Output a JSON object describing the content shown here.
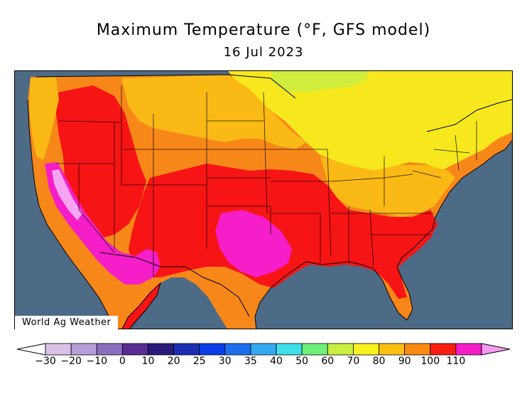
{
  "header": {
    "title": "Maximum Temperature (°F, GFS model)",
    "date": "16 Jul 2023"
  },
  "map": {
    "region": "United States",
    "watermark": "World Ag Weather",
    "ocean_color": "#4d6b87",
    "border_color": "#000000"
  },
  "legend": {
    "ticks": [
      "−30",
      "−20",
      "−10",
      "0",
      "10",
      "20",
      "25",
      "30",
      "35",
      "40",
      "50",
      "60",
      "70",
      "80",
      "90",
      "100",
      "110"
    ],
    "colors": [
      "#d9c2e8",
      "#b49fd8",
      "#8a6fbe",
      "#5a2c91",
      "#2a1b7a",
      "#1d2db4",
      "#0b3ee6",
      "#1e6ff0",
      "#34a8f1",
      "#3fe0e8",
      "#6ef07a",
      "#c8f040",
      "#f8f21e",
      "#fcc010",
      "#f88a10",
      "#f81e10",
      "#f41cc8"
    ],
    "end_colors": {
      "low": "#ffffff",
      "high": "#f49cf0"
    }
  },
  "temperature_colors": {
    "t60": "#d0ec3c",
    "t70": "#f6e81c",
    "t80": "#fbb915",
    "t90": "#f8871a",
    "t100": "#f71414",
    "t110": "#f51ec8",
    "t120": "#f7a5f0"
  }
}
